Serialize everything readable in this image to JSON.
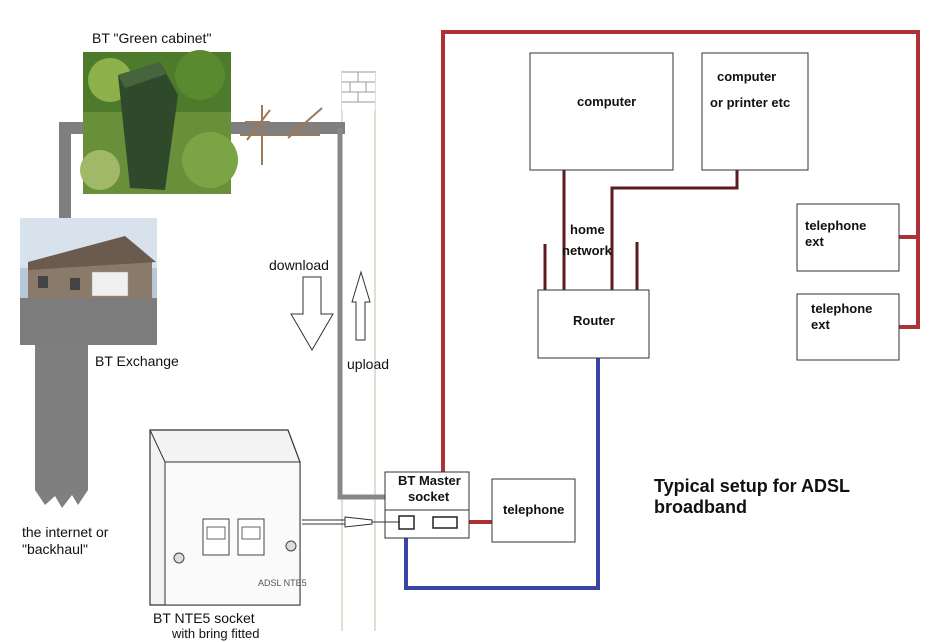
{
  "labels": {
    "green_cabinet": "BT \"Green cabinet\"",
    "exchange": "BT Exchange",
    "internet_line1": "the internet or",
    "internet_line2": "\"backhaul\"",
    "download": "download",
    "upload": "upload",
    "master_line1": "BT Master",
    "master_line2": "socket",
    "telephone": "telephone",
    "nte5_line1": "BT NTE5 socket",
    "nte5_line2": "with bring fitted",
    "computer1": "computer",
    "computer2_line1": "computer",
    "computer2_line2": "or printer etc",
    "home": "home",
    "network": "network",
    "router": "Router",
    "tel_ext1_line1": "telephone",
    "tel_ext1_line2": "ext",
    "tel_ext2_line1": "telephone",
    "tel_ext2_line2": "ext",
    "title_line1": "Typical setup for ADSL",
    "title_line2": "broadband",
    "faceplate": "ADSL NTE5"
  },
  "colors": {
    "red_wire": "#b03038",
    "blue_wire": "#3a44a8",
    "dark_wire": "#5c1a22",
    "grey_wire": "#888888",
    "pole_brown": "#9b7a5c",
    "backhaul": "#7f7f7f"
  }
}
